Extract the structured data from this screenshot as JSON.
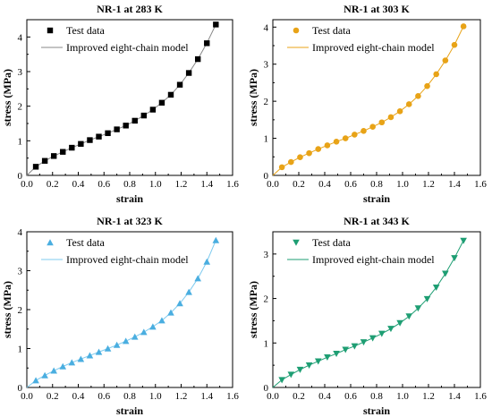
{
  "chart_data": [
    {
      "type": "scatter",
      "title": "NR-1 at 283 K",
      "xlabel": "strain",
      "ylabel": "stress (MPa)",
      "xlim": [
        0.0,
        1.6
      ],
      "ylim": [
        0,
        4.5
      ],
      "xticks": [
        "0.0",
        "0.2",
        "0.4",
        "0.6",
        "0.8",
        "1.0",
        "1.2",
        "1.4",
        "1.6"
      ],
      "yticks": [
        "0",
        "1",
        "2",
        "3",
        "4"
      ],
      "legend_position": "top-left",
      "series": [
        {
          "name": "Test data",
          "marker": "square",
          "color": "#000000",
          "x": [
            0.07,
            0.14,
            0.21,
            0.28,
            0.35,
            0.42,
            0.49,
            0.56,
            0.63,
            0.7,
            0.77,
            0.84,
            0.91,
            0.98,
            1.05,
            1.12,
            1.19,
            1.26,
            1.33,
            1.4,
            1.47
          ],
          "y": [
            0.25,
            0.42,
            0.56,
            0.68,
            0.8,
            0.91,
            1.02,
            1.12,
            1.22,
            1.33,
            1.44,
            1.58,
            1.73,
            1.9,
            2.1,
            2.33,
            2.62,
            2.96,
            3.36,
            3.82,
            4.36
          ]
        },
        {
          "name": "Improved eight-chain model",
          "line": true,
          "color": "#888888",
          "x": [
            0.0,
            0.07,
            0.14,
            0.21,
            0.28,
            0.35,
            0.42,
            0.49,
            0.56,
            0.63,
            0.7,
            0.77,
            0.84,
            0.91,
            0.98,
            1.05,
            1.12,
            1.19,
            1.26,
            1.33,
            1.4,
            1.47
          ],
          "y": [
            0.0,
            0.25,
            0.42,
            0.56,
            0.68,
            0.8,
            0.91,
            1.02,
            1.12,
            1.22,
            1.33,
            1.44,
            1.58,
            1.73,
            1.9,
            2.1,
            2.33,
            2.62,
            2.96,
            3.36,
            3.82,
            4.36
          ]
        }
      ]
    },
    {
      "type": "scatter",
      "title": "NR-1 at 303 K",
      "xlabel": "strain",
      "ylabel": "stress (MPa)",
      "xlim": [
        0.0,
        1.6
      ],
      "ylim": [
        0,
        4.2
      ],
      "xticks": [
        "0.0",
        "0.2",
        "0.4",
        "0.6",
        "0.8",
        "1.0",
        "1.2",
        "1.4",
        "1.6"
      ],
      "yticks": [
        "0",
        "1",
        "2",
        "3",
        "4"
      ],
      "legend_position": "top-left",
      "series": [
        {
          "name": "Test data",
          "marker": "circle",
          "color": "#E8A317",
          "x": [
            0.07,
            0.14,
            0.21,
            0.28,
            0.35,
            0.42,
            0.49,
            0.56,
            0.63,
            0.7,
            0.77,
            0.84,
            0.91,
            0.98,
            1.05,
            1.12,
            1.19,
            1.26,
            1.33,
            1.4,
            1.47
          ],
          "y": [
            0.22,
            0.36,
            0.49,
            0.6,
            0.71,
            0.81,
            0.91,
            1.0,
            1.1,
            1.2,
            1.31,
            1.43,
            1.57,
            1.73,
            1.92,
            2.14,
            2.41,
            2.73,
            3.1,
            3.52,
            4.02
          ]
        },
        {
          "name": "Improved eight-chain model",
          "line": true,
          "color": "#E8A317",
          "x": [
            0.0,
            0.07,
            0.14,
            0.21,
            0.28,
            0.35,
            0.42,
            0.49,
            0.56,
            0.63,
            0.7,
            0.77,
            0.84,
            0.91,
            0.98,
            1.05,
            1.12,
            1.19,
            1.26,
            1.33,
            1.4,
            1.47
          ],
          "y": [
            0.0,
            0.22,
            0.36,
            0.49,
            0.6,
            0.71,
            0.81,
            0.91,
            1.0,
            1.1,
            1.2,
            1.31,
            1.43,
            1.57,
            1.73,
            1.92,
            2.14,
            2.41,
            2.73,
            3.1,
            3.52,
            4.02
          ]
        }
      ]
    },
    {
      "type": "scatter",
      "title": "NR-1 at 323 K",
      "xlabel": "strain",
      "ylabel": "stress (MPa)",
      "xlim": [
        0.0,
        1.6
      ],
      "ylim": [
        0,
        4.0
      ],
      "xticks": [
        "0.0",
        "0.2",
        "0.4",
        "0.6",
        "0.8",
        "1.0",
        "1.2",
        "1.4",
        "1.6"
      ],
      "yticks": [
        "0",
        "1",
        "2",
        "3",
        "4"
      ],
      "legend_position": "top-left",
      "series": [
        {
          "name": "Test data",
          "marker": "triangle-up",
          "color": "#4AAEE0",
          "x": [
            0.07,
            0.14,
            0.21,
            0.28,
            0.35,
            0.42,
            0.49,
            0.56,
            0.63,
            0.7,
            0.77,
            0.84,
            0.91,
            0.98,
            1.05,
            1.12,
            1.19,
            1.26,
            1.33,
            1.4,
            1.47
          ],
          "y": [
            0.18,
            0.31,
            0.43,
            0.54,
            0.64,
            0.73,
            0.82,
            0.91,
            1.0,
            1.09,
            1.19,
            1.3,
            1.42,
            1.56,
            1.72,
            1.92,
            2.16,
            2.45,
            2.8,
            3.23,
            3.78
          ]
        },
        {
          "name": "Improved eight-chain model",
          "line": true,
          "color": "#7FCBEF",
          "x": [
            0.0,
            0.07,
            0.14,
            0.21,
            0.28,
            0.35,
            0.42,
            0.49,
            0.56,
            0.63,
            0.7,
            0.77,
            0.84,
            0.91,
            0.98,
            1.05,
            1.12,
            1.19,
            1.26,
            1.33,
            1.4,
            1.47
          ],
          "y": [
            0.0,
            0.18,
            0.31,
            0.43,
            0.54,
            0.64,
            0.73,
            0.82,
            0.91,
            1.0,
            1.09,
            1.19,
            1.3,
            1.42,
            1.56,
            1.72,
            1.92,
            2.16,
            2.45,
            2.8,
            3.23,
            3.78
          ]
        }
      ]
    },
    {
      "type": "scatter",
      "title": "NR-1 at 343 K",
      "xlabel": "strain",
      "ylabel": "stress (MPa)",
      "xlim": [
        0.0,
        1.6
      ],
      "ylim": [
        0,
        3.5
      ],
      "xticks": [
        "0.0",
        "0.2",
        "0.4",
        "0.6",
        "0.8",
        "1.0",
        "1.2",
        "1.4",
        "1.6"
      ],
      "yticks": [
        "0",
        "1",
        "2",
        "3"
      ],
      "legend_position": "top-left",
      "series": [
        {
          "name": "Test data",
          "marker": "triangle-down",
          "color": "#1E9E73",
          "x": [
            0.07,
            0.14,
            0.21,
            0.28,
            0.35,
            0.42,
            0.49,
            0.56,
            0.63,
            0.7,
            0.77,
            0.84,
            0.91,
            0.98,
            1.05,
            1.12,
            1.19,
            1.26,
            1.33,
            1.4,
            1.47
          ],
          "y": [
            0.17,
            0.29,
            0.4,
            0.5,
            0.59,
            0.68,
            0.76,
            0.85,
            0.93,
            1.02,
            1.11,
            1.21,
            1.32,
            1.45,
            1.6,
            1.78,
            1.99,
            2.25,
            2.56,
            2.91,
            3.3
          ]
        },
        {
          "name": "Improved eight-chain model",
          "line": true,
          "color": "#1E9E73",
          "x": [
            0.0,
            0.07,
            0.14,
            0.21,
            0.28,
            0.35,
            0.42,
            0.49,
            0.56,
            0.63,
            0.7,
            0.77,
            0.84,
            0.91,
            0.98,
            1.05,
            1.12,
            1.19,
            1.26,
            1.33,
            1.4,
            1.47
          ],
          "y": [
            0.0,
            0.17,
            0.29,
            0.4,
            0.5,
            0.59,
            0.68,
            0.76,
            0.85,
            0.93,
            1.02,
            1.11,
            1.21,
            1.32,
            1.45,
            1.6,
            1.78,
            1.99,
            2.25,
            2.56,
            2.91,
            3.3
          ]
        }
      ]
    }
  ]
}
